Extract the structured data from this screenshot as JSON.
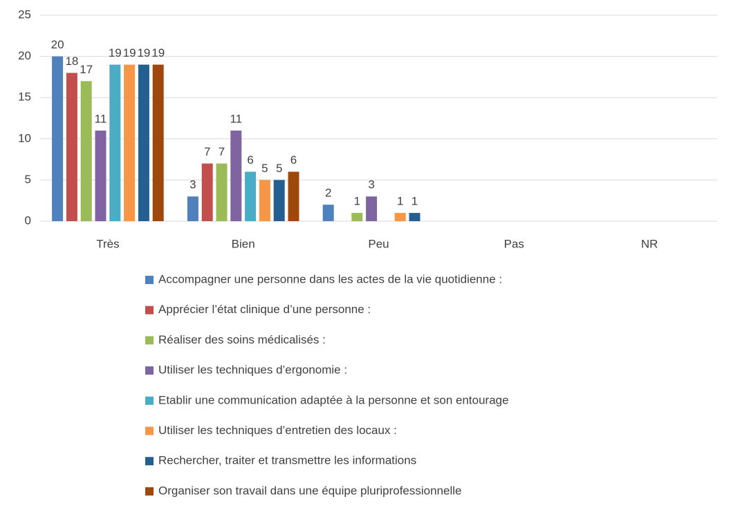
{
  "chart_data": {
    "type": "bar",
    "categories": [
      "Très",
      "Bien",
      "Peu",
      "Pas",
      "NR"
    ],
    "series": [
      {
        "name": "Accompagner une personne dans les actes de la vie quotidienne :",
        "color": "#4f81bd",
        "values": [
          20,
          3,
          2,
          null,
          null
        ]
      },
      {
        "name": "Apprécier l’état clinique d’une personne :",
        "color": "#c0504d",
        "values": [
          18,
          7,
          null,
          null,
          null
        ]
      },
      {
        "name": "Réaliser des soins médicalisés :",
        "color": "#9bbb59",
        "values": [
          17,
          7,
          1,
          null,
          null
        ]
      },
      {
        "name": "Utiliser les techniques d’ergonomie :",
        "color": "#8064a2",
        "values": [
          11,
          11,
          3,
          null,
          null
        ]
      },
      {
        "name": "Etablir une communication adaptée à la personne et son entourage",
        "color": "#4bacc6",
        "values": [
          19,
          6,
          null,
          null,
          null
        ]
      },
      {
        "name": "Utiliser les techniques d’entretien des locaux :",
        "color": "#f79646",
        "values": [
          19,
          5,
          1,
          null,
          null
        ]
      },
      {
        "name": "Rechercher, traiter et transmettre les informations",
        "color": "#255e91",
        "values": [
          19,
          5,
          1,
          null,
          null
        ]
      },
      {
        "name": "Organiser son travail dans une équipe pluriprofessionnelle",
        "color": "#9e480e",
        "values": [
          19,
          6,
          null,
          null,
          null
        ]
      }
    ],
    "ylim": [
      0,
      25
    ],
    "yticks": [
      0,
      5,
      10,
      15,
      20,
      25
    ],
    "grid": true,
    "legend": "bottom"
  }
}
